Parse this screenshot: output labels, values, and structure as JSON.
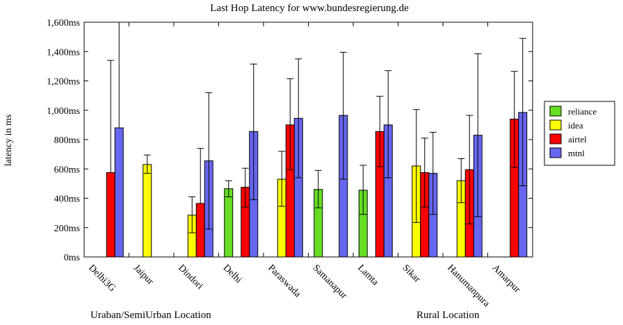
{
  "chart_data": {
    "type": "bar",
    "title": "Last Hop Latency for www.bundesregierung.de",
    "ylabel": "latency in ms",
    "xlabel": "",
    "ylim": [
      0,
      1600
    ],
    "yticks": [
      {
        "value": 0,
        "label": "0ms"
      },
      {
        "value": 200,
        "label": "200ms"
      },
      {
        "value": 400,
        "label": "400ms"
      },
      {
        "value": 600,
        "label": "600ms"
      },
      {
        "value": 800,
        "label": "800ms"
      },
      {
        "value": 1000,
        "label": "1,000ms"
      },
      {
        "value": 1200,
        "label": "1,200ms"
      },
      {
        "value": 1400,
        "label": "1,400ms"
      },
      {
        "value": 1600,
        "label": "1,600ms"
      }
    ],
    "categories": [
      "Delhi3G",
      "Jaipur",
      "Dindori",
      "Delhi",
      "Paraswada",
      "Samanapur",
      "Lamta",
      "Sikar",
      "Hanumanpura",
      "Amarpur"
    ],
    "group_labels": [
      "Uraban/SemiUrban Location",
      "Rural Location"
    ],
    "legend_position": "right",
    "grid": false,
    "series": [
      {
        "name": "reliance",
        "color": "#66dd22",
        "values": [
          null,
          null,
          null,
          465,
          null,
          460,
          455,
          null,
          null,
          null
        ],
        "err_low": [
          null,
          null,
          null,
          410,
          null,
          335,
          290,
          null,
          null,
          null
        ],
        "err_high": [
          null,
          null,
          null,
          520,
          null,
          590,
          625,
          null,
          null,
          null
        ]
      },
      {
        "name": "idea",
        "color": "#ffff00",
        "values": [
          null,
          630,
          285,
          null,
          530,
          null,
          null,
          620,
          520,
          null
        ],
        "err_low": [
          null,
          570,
          165,
          null,
          345,
          null,
          null,
          235,
          370,
          null
        ],
        "err_high": [
          null,
          695,
          410,
          null,
          720,
          null,
          null,
          1005,
          670,
          null
        ]
      },
      {
        "name": "airtel",
        "color": "#ff0000",
        "values": [
          575,
          null,
          365,
          475,
          900,
          null,
          855,
          575,
          595,
          940
        ],
        "err_low": [
          null,
          null,
          null,
          340,
          595,
          null,
          615,
          340,
          225,
          610
        ],
        "err_high": [
          1340,
          null,
          740,
          605,
          1215,
          null,
          1095,
          810,
          965,
          1265
        ]
      },
      {
        "name": "mtnl",
        "color": "#6666ee",
        "values": [
          880,
          null,
          655,
          855,
          945,
          965,
          900,
          570,
          830,
          985
        ],
        "err_low": [
          null,
          null,
          190,
          390,
          540,
          530,
          540,
          290,
          275,
          485
        ],
        "err_high": [
          1600,
          null,
          1120,
          1315,
          1350,
          1395,
          1270,
          850,
          1385,
          1490
        ]
      }
    ]
  }
}
